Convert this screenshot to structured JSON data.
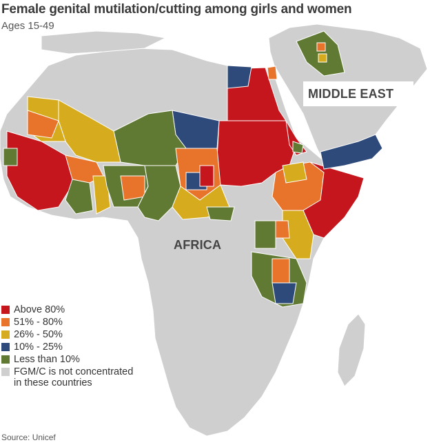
{
  "title": "Female genital mutilation/cutting among girls and women",
  "subtitle": "Ages 15-49",
  "regions": {
    "middle_east": "MIDDLE EAST",
    "africa": "AFRICA"
  },
  "colors": {
    "above_80": "#c4161c",
    "r51_80": "#e8732a",
    "r26_50": "#d6ac1e",
    "r10_25": "#2d4a7a",
    "lt10": "#607a34",
    "not_concentrated": "#cfcfcf",
    "sea": "#ffffff",
    "border": "#ffffff"
  },
  "legend": [
    {
      "label": "Above 80%",
      "color": "#c4161c"
    },
    {
      "label": "51% - 80%",
      "color": "#e8732a"
    },
    {
      "label": "26% - 50%",
      "color": "#d6ac1e"
    },
    {
      "label": "10% - 25%",
      "color": "#2d4a7a"
    },
    {
      "label": "Less than 10%",
      "color": "#607a34"
    },
    {
      "label": "FGM/C is not concentrated\nin these countries",
      "color": "#cfcfcf"
    }
  ],
  "source": "Source: Unicef"
}
